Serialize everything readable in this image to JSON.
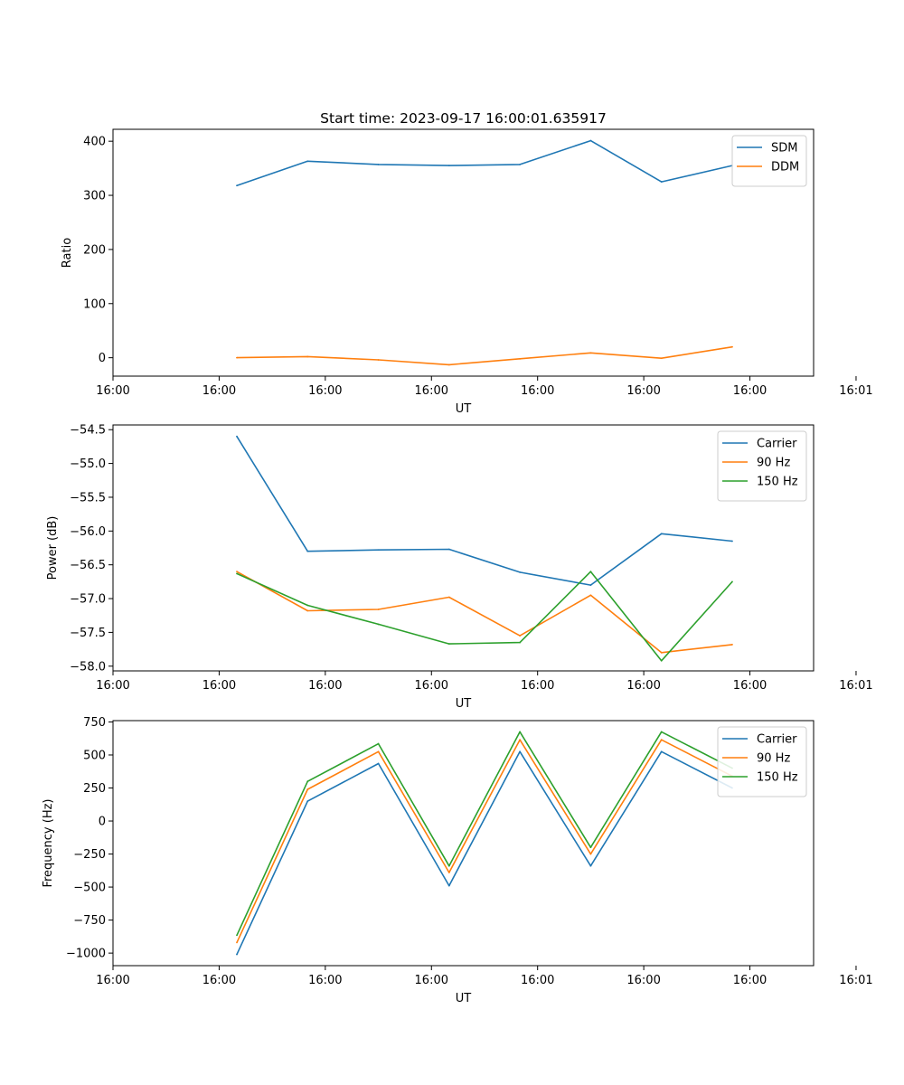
{
  "figure_title": "Start time: 2023-09-17 16:00:01.635917",
  "colors": {
    "blue": "#1f77b4",
    "orange": "#ff7f0e",
    "green": "#2ca02c",
    "axes": "#000000",
    "legend_border": "#cccccc"
  },
  "chart_data": [
    {
      "type": "line",
      "title": "Start time: 2023-09-17 16:00:01.635917",
      "xlabel": "UT",
      "ylabel": "Ratio",
      "x": [
        1,
        2,
        3,
        4,
        5,
        6,
        7,
        8
      ],
      "xlim": [
        -0.75,
        9.15
      ],
      "ylim": [
        -34,
        422
      ],
      "xticks": [
        -0.75,
        0.75,
        2.25,
        3.75,
        5.25,
        6.75,
        8.25,
        9.75
      ],
      "xtick_labels": [
        "16:00",
        "16:00",
        "16:00",
        "16:00",
        "16:00",
        "16:00",
        "16:00",
        "16:01"
      ],
      "yticks": [
        0,
        100,
        200,
        300,
        400
      ],
      "ytick_labels": [
        "0",
        "100",
        "200",
        "300",
        "400"
      ],
      "legend_position": "top-right",
      "series": [
        {
          "name": "SDM",
          "color": "#1f77b4",
          "values": [
            318,
            363,
            357,
            355,
            357,
            401,
            325,
            355
          ]
        },
        {
          "name": "DDM",
          "color": "#ff7f0e",
          "values": [
            0,
            2,
            -4,
            -13,
            -2,
            9,
            -1,
            20
          ]
        }
      ]
    },
    {
      "type": "line",
      "title": "",
      "xlabel": "UT",
      "ylabel": "Power (dB)",
      "x": [
        1,
        2,
        3,
        4,
        5,
        6,
        7,
        8
      ],
      "xlim": [
        -0.75,
        9.15
      ],
      "ylim": [
        -58.07,
        -54.43
      ],
      "xticks": [
        -0.75,
        0.75,
        2.25,
        3.75,
        5.25,
        6.75,
        8.25,
        9.75
      ],
      "xtick_labels": [
        "16:00",
        "16:00",
        "16:00",
        "16:00",
        "16:00",
        "16:00",
        "16:00",
        "16:01"
      ],
      "yticks": [
        -54.5,
        -55.0,
        -55.5,
        -56.0,
        -56.5,
        -57.0,
        -57.5,
        -58.0
      ],
      "ytick_labels": [
        "−54.5",
        "−55.0",
        "−55.5",
        "−56.0",
        "−56.5",
        "−57.0",
        "−57.5",
        "−58.0"
      ],
      "legend_position": "top-right",
      "series": [
        {
          "name": "Carrier",
          "color": "#1f77b4",
          "values": [
            -54.6,
            -56.3,
            -56.28,
            -56.27,
            -56.61,
            -56.8,
            -56.04,
            -56.15
          ]
        },
        {
          "name": "90 Hz",
          "color": "#ff7f0e",
          "values": [
            -56.6,
            -57.18,
            -57.16,
            -56.98,
            -57.55,
            -56.95,
            -57.8,
            -57.68
          ]
        },
        {
          "name": "150 Hz",
          "color": "#2ca02c",
          "values": [
            -56.63,
            -57.1,
            -57.38,
            -57.67,
            -57.65,
            -56.6,
            -57.92,
            -56.75
          ]
        }
      ]
    },
    {
      "type": "line",
      "title": "",
      "xlabel": "UT",
      "ylabel": "Frequency (Hz)",
      "x": [
        1,
        2,
        3,
        4,
        5,
        6,
        7,
        8
      ],
      "xlim": [
        -0.75,
        9.15
      ],
      "ylim": [
        -1095,
        760
      ],
      "xticks": [
        -0.75,
        0.75,
        2.25,
        3.75,
        5.25,
        6.75,
        8.25,
        9.75
      ],
      "xtick_labels": [
        "16:00",
        "16:00",
        "16:00",
        "16:00",
        "16:00",
        "16:00",
        "16:00",
        "16:01"
      ],
      "yticks": [
        750,
        500,
        250,
        0,
        -250,
        -500,
        -750,
        -1000
      ],
      "ytick_labels": [
        "750",
        "500",
        "250",
        "0",
        "−250",
        "−500",
        "−750",
        "−1000"
      ],
      "legend_position": "top-right",
      "series": [
        {
          "name": "Carrier",
          "color": "#1f77b4",
          "values": [
            -1010,
            150,
            435,
            -490,
            525,
            -340,
            525,
            250
          ]
        },
        {
          "name": "90 Hz",
          "color": "#ff7f0e",
          "values": [
            -920,
            240,
            525,
            -390,
            615,
            -250,
            615,
            340
          ]
        },
        {
          "name": "150 Hz",
          "color": "#2ca02c",
          "values": [
            -865,
            300,
            585,
            -340,
            675,
            -200,
            675,
            400
          ]
        }
      ]
    }
  ]
}
